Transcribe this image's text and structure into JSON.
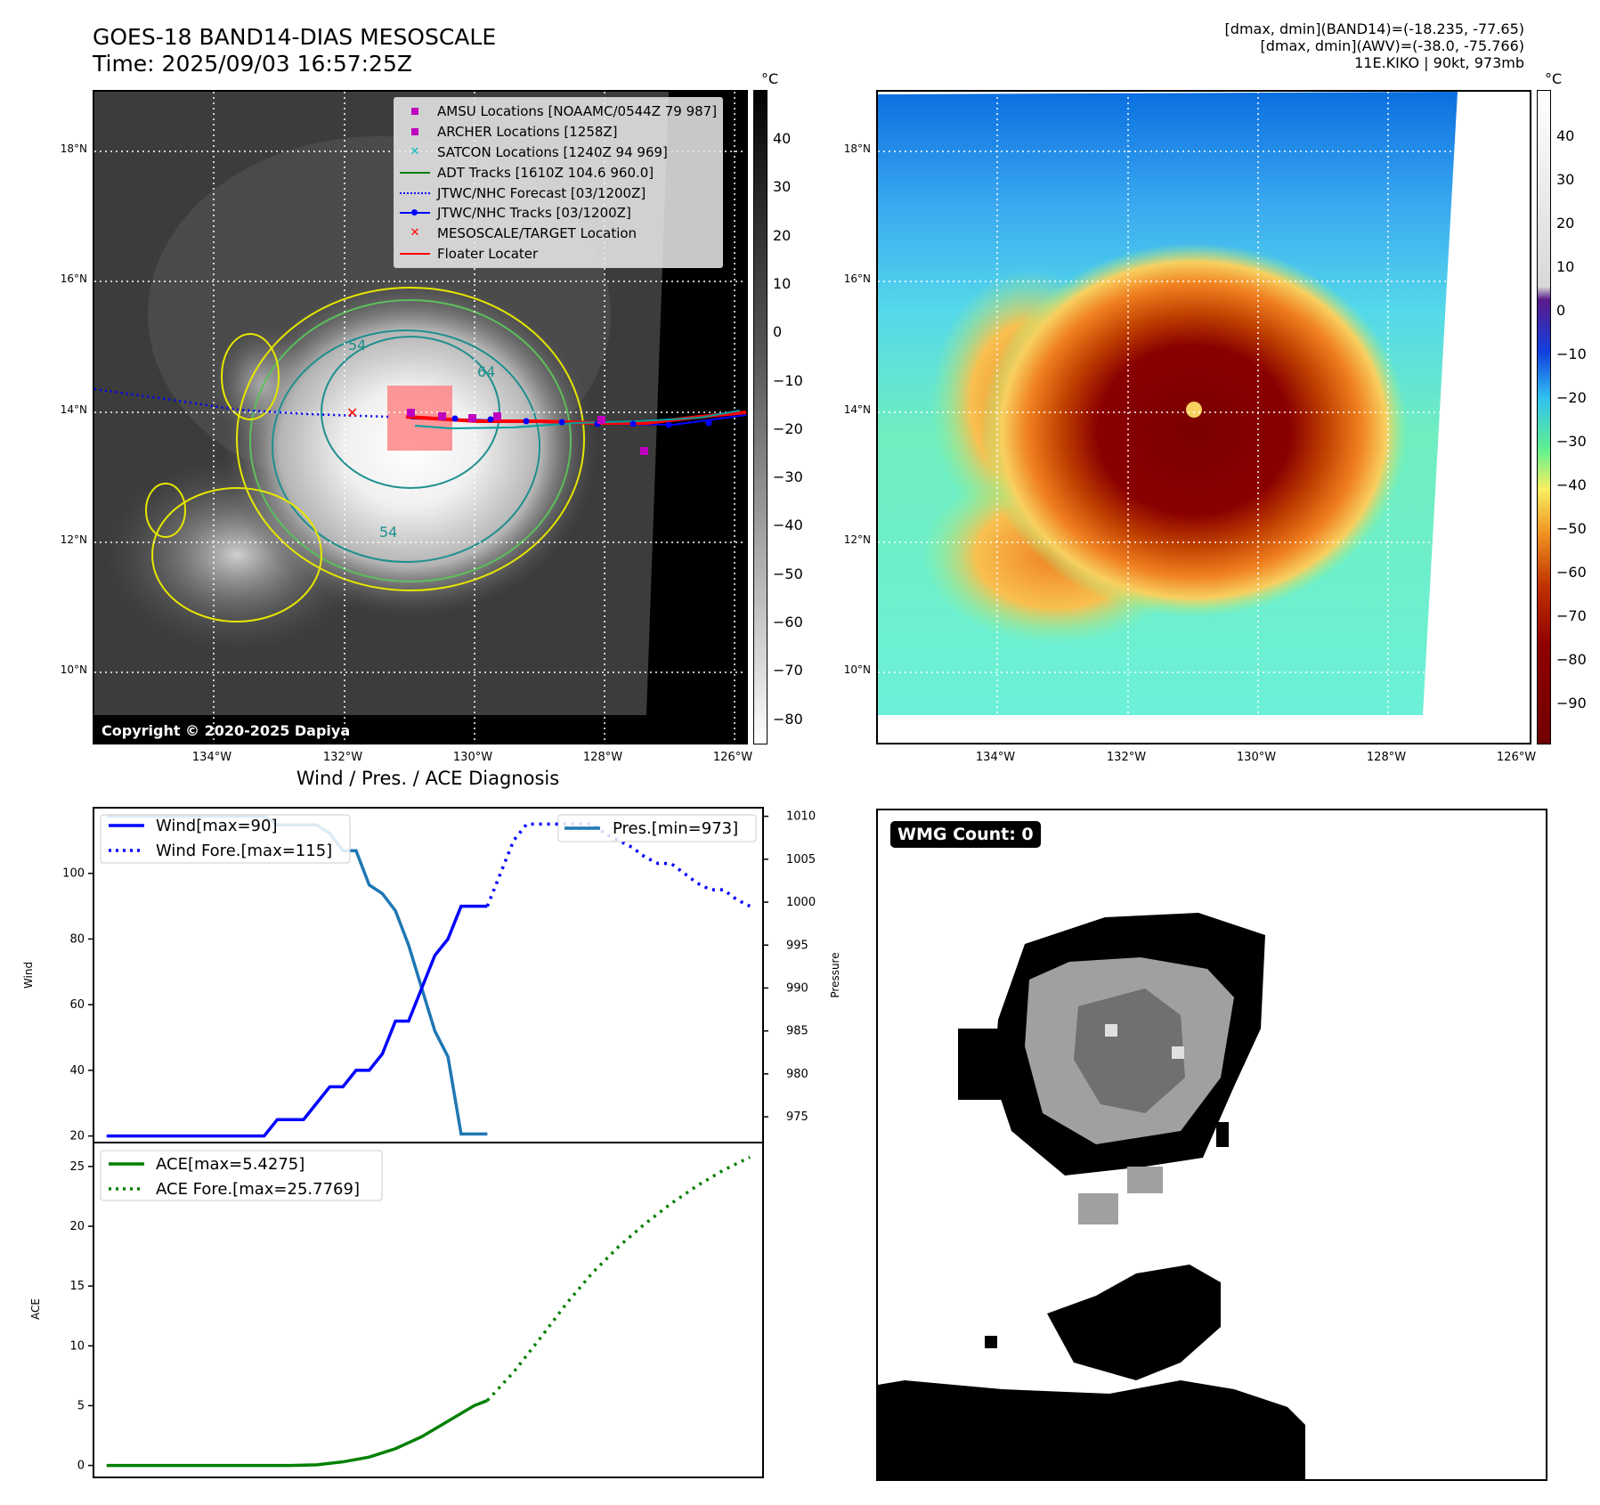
{
  "header": {
    "title_line1": "GOES-18 BAND14-DIAS MESOSCALE",
    "title_line2": "Time: 2025/09/03 16:57:25Z",
    "info_line1": "[dmax, dmin](BAND14)=(-18.235, -77.65)",
    "info_line2": "[dmax, dmin](AWV)=(-38.0, -75.766)",
    "info_line3": "11E.KIKO | 90kt, 973mb"
  },
  "map_axes": {
    "lat_ticks": [
      "18°N",
      "16°N",
      "14°N",
      "12°N",
      "10°N"
    ],
    "lon_ticks": [
      "134°W",
      "132°W",
      "130°W",
      "128°W",
      "126°W"
    ],
    "contour_labels": [
      "54",
      "64",
      "54"
    ]
  },
  "ir_colorbar": {
    "unit": "°C",
    "ticks": [
      "40",
      "30",
      "20",
      "10",
      "0",
      "−10",
      "−20",
      "−30",
      "−40",
      "−50",
      "−60",
      "−70",
      "−80"
    ]
  },
  "color_colorbar": {
    "unit": "°C",
    "ticks": [
      "40",
      "30",
      "20",
      "10",
      "0",
      "−10",
      "−20",
      "−30",
      "−40",
      "−50",
      "−60",
      "−70",
      "−80",
      "−90"
    ]
  },
  "map_legend": [
    {
      "label": "AMSU Locations [NOAAMC/0544Z 79 987]",
      "symbol": "square",
      "color": "#bf00bf"
    },
    {
      "label": "ARCHER Locations [1258Z]",
      "symbol": "square",
      "color": "#bf00bf"
    },
    {
      "label": "SATCON Locations [1240Z 94 969]",
      "symbol": "x",
      "color": "#00bfbf"
    },
    {
      "label": "ADT Tracks [1610Z 104.6 960.0]",
      "symbol": "line",
      "color": "#008000"
    },
    {
      "label": "JTWC/NHC Forecast [03/1200Z]",
      "symbol": "dotted",
      "color": "#0000ff"
    },
    {
      "label": "JTWC/NHC Tracks [03/1200Z]",
      "symbol": "line-dot",
      "color": "#0000ff"
    },
    {
      "label": "MESOSCALE/TARGET Location",
      "symbol": "x",
      "color": "#ff0000"
    },
    {
      "label": "Floater Locater",
      "symbol": "line",
      "color": "#ff0000"
    }
  ],
  "copyright": "Copyright © 2020-2025 Dapiya",
  "wmg": {
    "label": "WMG Count: 0"
  },
  "chart_data": [
    {
      "type": "line",
      "title": "Wind / Pres. / ACE Diagnosis",
      "ylabel": "Wind",
      "ylabel_right": "Pressure",
      "ylim": [
        18,
        120
      ],
      "ylim_right": [
        972,
        1011
      ],
      "yticks": [
        20,
        40,
        60,
        80,
        100
      ],
      "yticks_right": [
        975,
        980,
        985,
        990,
        995,
        1000,
        1005,
        1010
      ],
      "x": [
        0,
        1,
        2,
        3,
        4,
        5,
        6,
        7,
        8,
        9,
        10,
        11,
        12,
        13,
        14,
        15,
        16,
        17,
        18,
        19,
        20,
        21,
        22,
        23,
        24,
        25,
        26,
        27,
        28,
        29,
        30,
        31,
        32,
        33,
        34,
        35,
        36,
        37,
        38,
        39,
        40,
        41,
        42,
        43,
        44,
        45,
        46,
        47,
        48,
        49
      ],
      "series": [
        {
          "name": "Wind[max=90]",
          "axis": "left",
          "style": "solid",
          "color": "#0000ff",
          "x": [
            0,
            1,
            2,
            3,
            4,
            5,
            6,
            7,
            8,
            9,
            10,
            11,
            12,
            13,
            14,
            15,
            16,
            17,
            18,
            19,
            20,
            21,
            22,
            23,
            24,
            25,
            26,
            27,
            28,
            29
          ],
          "values": [
            20,
            20,
            20,
            20,
            20,
            20,
            20,
            20,
            20,
            20,
            20,
            20,
            20,
            25,
            25,
            25,
            30,
            35,
            35,
            40,
            40,
            45,
            55,
            55,
            65,
            75,
            80,
            90,
            90,
            90
          ]
        },
        {
          "name": "Wind Fore.[max=115]",
          "axis": "left",
          "style": "dotted",
          "color": "#0000ff",
          "x": [
            29,
            30,
            31,
            32,
            33,
            34,
            35,
            36,
            37,
            38,
            39,
            40,
            41,
            42,
            43,
            44,
            45,
            46,
            47,
            48,
            49
          ],
          "values": [
            90,
            100,
            110,
            115,
            115,
            115,
            115,
            115,
            115,
            112,
            110,
            108,
            105,
            103,
            103,
            100,
            97,
            95,
            95,
            92,
            90
          ]
        },
        {
          "name": "Pres.[min=973]",
          "axis": "right",
          "style": "solid",
          "color": "#1f77b4",
          "x": [
            0,
            1,
            2,
            3,
            4,
            5,
            6,
            7,
            8,
            9,
            10,
            11,
            12,
            13,
            14,
            15,
            16,
            17,
            18,
            19,
            20,
            21,
            22,
            23,
            24,
            25,
            26,
            27,
            28,
            29
          ],
          "values": [
            1010,
            1010,
            1010,
            1010,
            1010,
            1010,
            1010,
            1010,
            1010,
            1010,
            1010,
            1010,
            1010,
            1009,
            1009,
            1009,
            1009,
            1008,
            1006,
            1006,
            1002,
            1001,
            999,
            995,
            990,
            985,
            982,
            973,
            973,
            973
          ]
        }
      ],
      "legend": [
        "Wind[max=90]",
        "Wind Fore.[max=115]",
        "Pres.[min=973]"
      ]
    },
    {
      "type": "line",
      "ylabel": "ACE",
      "ylim": [
        -1,
        27
      ],
      "yticks": [
        0,
        5,
        10,
        15,
        20,
        25
      ],
      "series": [
        {
          "name": "ACE[max=5.4275]",
          "style": "solid",
          "color": "#008000",
          "x": [
            0,
            2,
            4,
            6,
            8,
            10,
            12,
            14,
            16,
            18,
            20,
            22,
            24,
            26,
            28,
            29
          ],
          "values": [
            0,
            0,
            0,
            0,
            0,
            0,
            0,
            0,
            0.05,
            0.3,
            0.7,
            1.4,
            2.4,
            3.7,
            5.0,
            5.4275
          ]
        },
        {
          "name": "ACE Fore.[max=25.7769]",
          "style": "dotted",
          "color": "#008000",
          "x": [
            29,
            31,
            33,
            35,
            37,
            39,
            41,
            43,
            45,
            47,
            49
          ],
          "values": [
            5.4275,
            7.8,
            10.6,
            13.5,
            16.1,
            18.3,
            20.2,
            21.9,
            23.4,
            24.7,
            25.7769
          ]
        }
      ],
      "legend": [
        "ACE[max=5.4275]",
        "ACE Fore.[max=25.7769]"
      ]
    }
  ]
}
